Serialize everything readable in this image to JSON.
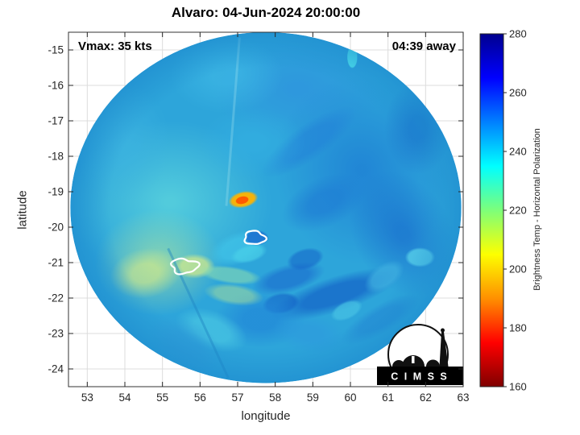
{
  "chart_data": {
    "type": "heatmap",
    "title": "Alvaro: 04-Jun-2024 20:00:00",
    "annotations": {
      "vmax": "Vmax: 35 kts",
      "time_away": "04:39 away"
    },
    "xlabel": "longitude",
    "ylabel": "latitude",
    "xlim": [
      52.5,
      63
    ],
    "ylim": [
      -24.5,
      -14.5
    ],
    "xticks": [
      53,
      54,
      55,
      56,
      57,
      58,
      59,
      60,
      61,
      62,
      63
    ],
    "yticks": [
      -15,
      -16,
      -17,
      -18,
      -19,
      -20,
      -21,
      -22,
      -23,
      -24
    ],
    "grid": true,
    "grid_color": "#dcdcdc",
    "axes_color": "#333333",
    "tick_label_color": "#262626",
    "colorbar": {
      "label": "Brightness Temp - Horizontal Polarization",
      "min": 160,
      "max": 280,
      "ticks": [
        160,
        180,
        200,
        220,
        240,
        260,
        280
      ],
      "colormap": "jet reversed (low=dark red, high=dark blue)",
      "stops": [
        {
          "v": 160,
          "c": "#7f0000"
        },
        {
          "v": 175,
          "c": "#ff0000"
        },
        {
          "v": 190,
          "c": "#ff9000"
        },
        {
          "v": 205,
          "c": "#fdff00"
        },
        {
          "v": 220,
          "c": "#7dff7a"
        },
        {
          "v": 235,
          "c": "#00ffff"
        },
        {
          "v": 250,
          "c": "#0080ff"
        },
        {
          "v": 265,
          "c": "#0000ff"
        },
        {
          "v": 280,
          "c": "#00008f"
        }
      ]
    },
    "swath": {
      "center_lon": 57.75,
      "center_lat": -19.45,
      "radius_lon": 5.2,
      "radius_lat": 4.95,
      "base_color": "#2da5da",
      "rim_color": "#1b86cc"
    },
    "features": [
      {
        "lon": 55.2,
        "lat": -19.3,
        "rx": 2.7,
        "ry": 2.3,
        "rot": 0,
        "color": "#54cddc",
        "op": 0.95,
        "blur": 18
      },
      {
        "lon": 53.9,
        "lat": -17.6,
        "rx": 1.3,
        "ry": 1.7,
        "rot": 0,
        "color": "#3db4e0",
        "op": 0.7,
        "blur": 14
      },
      {
        "lon": 54.9,
        "lat": -21.0,
        "rx": 1.7,
        "ry": 1.5,
        "rot": 0,
        "color": "#a6e0a2",
        "op": 0.65,
        "blur": 14
      },
      {
        "lon": 54.55,
        "lat": -21.3,
        "rx": 0.95,
        "ry": 0.7,
        "rot": -10,
        "color": "#d8eb86",
        "op": 0.6,
        "blur": 10
      },
      {
        "lon": 55.85,
        "lat": -21.1,
        "rx": 0.55,
        "ry": 0.35,
        "rot": 0,
        "color": "#cfe98c",
        "op": 0.75,
        "blur": 6
      },
      {
        "lon": 56.8,
        "lat": -21.35,
        "rx": 0.85,
        "ry": 0.25,
        "rot": 8,
        "color": "#8fdfae",
        "op": 0.55,
        "blur": 5
      },
      {
        "lon": 58.6,
        "lat": -16.1,
        "rx": 2.3,
        "ry": 1.5,
        "rot": 0,
        "color": "#2f93de",
        "op": 0.75,
        "blur": 16
      },
      {
        "lon": 56.7,
        "lat": -15.7,
        "rx": 1.5,
        "ry": 1.1,
        "rot": 0,
        "color": "#3fb9e6",
        "op": 0.6,
        "blur": 12
      },
      {
        "lon": 60.3,
        "lat": -18.4,
        "rx": 2.3,
        "ry": 2.7,
        "rot": -20,
        "color": "#1e7fd4",
        "op": 0.8,
        "blur": 18
      },
      {
        "lon": 61.4,
        "lat": -20.2,
        "rx": 1.3,
        "ry": 1.9,
        "rot": -30,
        "color": "#1768cc",
        "op": 0.6,
        "blur": 14
      },
      {
        "lon": 61.8,
        "lat": -17.2,
        "rx": 0.9,
        "ry": 1.3,
        "rot": 0,
        "color": "#1565c8",
        "op": 0.5,
        "blur": 12
      },
      {
        "lon": 58.9,
        "lat": -17.6,
        "rx": 1.5,
        "ry": 0.5,
        "rot": -35,
        "color": "#2280d8",
        "op": 0.55,
        "blur": 8
      },
      {
        "lon": 59.3,
        "lat": -19.3,
        "rx": 1.2,
        "ry": 0.7,
        "rot": -25,
        "color": "#1e7cd4",
        "op": 0.65,
        "blur": 10
      },
      {
        "lon": 59.6,
        "lat": -21.9,
        "rx": 1.8,
        "ry": 0.5,
        "rot": -18,
        "color": "#1565c8",
        "op": 0.75,
        "blur": 8
      },
      {
        "lon": 58.35,
        "lat": -21.45,
        "rx": 1.0,
        "ry": 0.4,
        "rot": -15,
        "color": "#1d74d0",
        "op": 0.75,
        "blur": 7
      },
      {
        "lon": 58.15,
        "lat": -22.15,
        "rx": 0.5,
        "ry": 0.3,
        "rot": -10,
        "color": "#135fc6",
        "op": 0.6,
        "blur": 4
      },
      {
        "lon": 58.8,
        "lat": -20.9,
        "rx": 0.5,
        "ry": 0.3,
        "rot": -15,
        "color": "#1462c8",
        "op": 0.55,
        "blur": 4
      },
      {
        "lon": 57.6,
        "lat": -22.6,
        "rx": 1.2,
        "ry": 0.8,
        "rot": 0,
        "color": "#2187d8",
        "op": 0.7,
        "blur": 10
      },
      {
        "lon": 58.9,
        "lat": -23.0,
        "rx": 1.0,
        "ry": 0.55,
        "rot": 10,
        "color": "#2d9ade",
        "op": 0.6,
        "blur": 10
      },
      {
        "lon": 56.3,
        "lat": -22.9,
        "rx": 1.0,
        "ry": 0.55,
        "rot": 20,
        "color": "#49c6e2",
        "op": 0.7,
        "blur": 8
      },
      {
        "lon": 55.6,
        "lat": -23.3,
        "rx": 1.1,
        "ry": 0.7,
        "rot": 30,
        "color": "#2f9bd8",
        "op": 0.6,
        "blur": 10
      },
      {
        "lon": 57.0,
        "lat": -20.6,
        "rx": 0.8,
        "ry": 0.45,
        "rot": -20,
        "color": "#40c4e8",
        "op": 0.7,
        "blur": 7
      },
      {
        "lon": 57.3,
        "lat": -20.75,
        "rx": 0.5,
        "ry": 0.25,
        "rot": -15,
        "color": "#49d0e8",
        "op": 0.7,
        "blur": 5
      },
      {
        "lon": 57.5,
        "lat": -20.3,
        "rx": 0.33,
        "ry": 0.22,
        "rot": 0,
        "color": "#1a6fd0",
        "op": 0.85,
        "blur": 4
      },
      {
        "lon": 60.9,
        "lat": -21.4,
        "rx": 0.6,
        "ry": 0.35,
        "rot": -35,
        "color": "#3fb0e0",
        "op": 0.7,
        "blur": 6
      },
      {
        "lon": 61.85,
        "lat": -20.85,
        "rx": 0.4,
        "ry": 0.28,
        "rot": 0,
        "color": "#55cde8",
        "op": 0.8,
        "blur": 4
      },
      {
        "lon": 59.9,
        "lat": -22.35,
        "rx": 0.45,
        "ry": 0.25,
        "rot": -25,
        "color": "#47c2e4",
        "op": 0.7,
        "blur": 4
      },
      {
        "lon": 60.8,
        "lat": -22.6,
        "rx": 1.2,
        "ry": 0.4,
        "rot": -30,
        "color": "#2488d4",
        "op": 0.6,
        "blur": 8
      },
      {
        "lon": 57.4,
        "lat": -17.6,
        "rx": 1.4,
        "ry": 1.0,
        "rot": 0,
        "color": "#35b2e4",
        "op": 0.5,
        "blur": 12
      },
      {
        "lon": 56.9,
        "lat": -21.9,
        "rx": 0.8,
        "ry": 0.3,
        "rot": 8,
        "color": "#bde890",
        "op": 0.45,
        "blur": 6
      },
      {
        "lon": 60.05,
        "lat": -15.2,
        "rx": 0.14,
        "ry": 0.32,
        "rot": 0,
        "color": "#55f0f0",
        "op": 0.95,
        "blur": 2
      },
      {
        "lon": 57.15,
        "lat": -19.22,
        "rx": 0.4,
        "ry": 0.23,
        "rot": -12,
        "color": "#ffb300",
        "op": 0.95,
        "blur": 4
      },
      {
        "lon": 57.12,
        "lat": -19.24,
        "rx": 0.18,
        "ry": 0.11,
        "rot": -12,
        "color": "#ff5500",
        "op": 0.95,
        "blur": 2
      }
    ],
    "contours": [
      {
        "lon": 57.45,
        "lat": -20.3,
        "rx": 0.27,
        "ry": 0.19,
        "wobble": 0.22,
        "phase": 0.8
      },
      {
        "lon": 55.58,
        "lat": -21.1,
        "rx": 0.34,
        "ry": 0.21,
        "wobble": 0.28,
        "phase": 2.1
      }
    ],
    "contour_color": "#ffffff",
    "seams": [
      {
        "from": [
          57.05,
          -14.65
        ],
        "to": [
          56.7,
          -19.4
        ],
        "color": "#a6e6f0",
        "opacity": 0.3,
        "width": 3
      },
      {
        "from": [
          55.15,
          -20.6
        ],
        "to": [
          56.75,
          -24.25
        ],
        "color": "#1f86c4",
        "opacity": 0.45,
        "width": 3
      }
    ]
  },
  "logo": {
    "text": "C I M S S"
  }
}
